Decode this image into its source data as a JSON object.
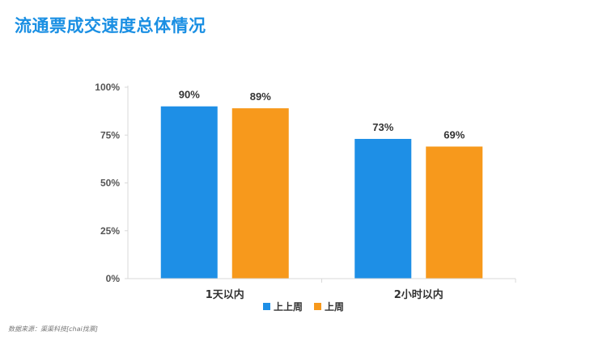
{
  "title": "流通票成交速度总体情况",
  "source_note": "数据来源：渠渠科技[chai找票]",
  "chart_data": {
    "type": "bar",
    "categories": [
      "1天以内",
      "2小时以内"
    ],
    "series": [
      {
        "name": "上上周",
        "values": [
          90,
          73
        ],
        "color": "#1e8fe6"
      },
      {
        "name": "上周",
        "values": [
          89,
          69
        ],
        "color": "#f7991c"
      }
    ],
    "ylim": [
      0,
      100
    ],
    "yticks": [
      0,
      25,
      50,
      75,
      100
    ],
    "ytick_labels": [
      "0%",
      "25%",
      "50%",
      "75%",
      "100%"
    ],
    "data_labels": [
      [
        "90%",
        "73%"
      ],
      [
        "89%",
        "69%"
      ]
    ],
    "legend_position": "bottom",
    "grid": false
  }
}
